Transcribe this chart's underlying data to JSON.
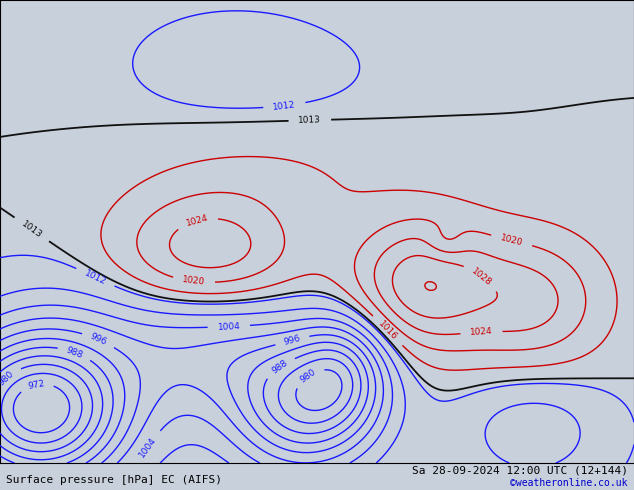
{
  "title_left": "Surface pressure [hPa] EC (AIFS)",
  "title_right": "Sa 28-09-2024 12:00 UTC (12+144)",
  "title_right2": "©weatheronline.co.uk",
  "ocean_color": "#c8d0dc",
  "land_color": "#b0d890",
  "land_edge_color": "#888888",
  "footer_font_size": 8,
  "fig_width": 6.34,
  "fig_height": 4.9,
  "dpi": 100,
  "lon_min": 80,
  "lon_max": 205,
  "lat_min": -68,
  "lat_max": 18
}
